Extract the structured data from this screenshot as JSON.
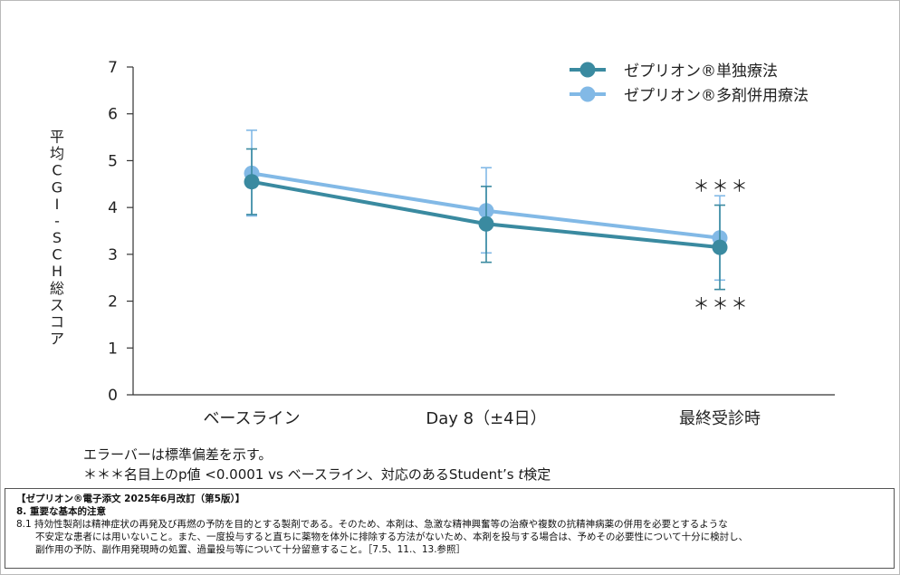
{
  "chart_data": {
    "type": "line",
    "ylabel": "平均CGI-SCH総スコア",
    "ylim": [
      0,
      7
    ],
    "yticks": [
      "0",
      "1",
      "2",
      "3",
      "4",
      "5",
      "6",
      "7"
    ],
    "categories": [
      "ベースライン",
      "Day 8（±4日）",
      "最終受診時"
    ],
    "series": [
      {
        "name": "ゼプリオン®単独療法",
        "color": "#3a8aa0",
        "values": [
          4.55,
          3.65,
          3.15
        ],
        "err_low": [
          3.85,
          2.83,
          2.25
        ],
        "err_high": [
          5.25,
          4.45,
          4.05
        ]
      },
      {
        "name": "ゼプリオン®多剤併用療法",
        "color": "#82b9e6",
        "values": [
          4.73,
          3.93,
          3.35
        ],
        "err_low": [
          3.82,
          3.03,
          2.45
        ],
        "err_high": [
          5.65,
          4.85,
          4.25
        ]
      }
    ],
    "annotations": {
      "top": "＊＊＊",
      "bottom": "＊＊＊"
    }
  },
  "notes": {
    "error_bar": "エラーバーは標準偏差を示す。",
    "significance_prefix": "＊＊＊名目上のp値 <0.0001 vs ベースライン、対応のあるStudent’s ",
    "significance_t": "t",
    "significance_suffix": "検定"
  },
  "info": {
    "header": "【ゼプリオン®電子添文 2025年6月改訂（第5版）】",
    "section": "8. 重要な基本的注意",
    "line1": "8.1 持効性製剤は精神症状の再発及び再燃の予防を目的とする製剤である。そのため、本剤は、急激な精神興奮等の治療や複数の抗精神病薬の併用を必要とするような",
    "line2": "不安定な患者には用いないこと。また、一度投与すると直ちに薬物を体外に排除する方法がないため、本剤を投与する場合は、予めその必要性について十分に検討し、",
    "line3": "副作用の予防、副作用発現時の処置、過量投与等について十分留意すること。［7.5、11.、13.参照］"
  }
}
